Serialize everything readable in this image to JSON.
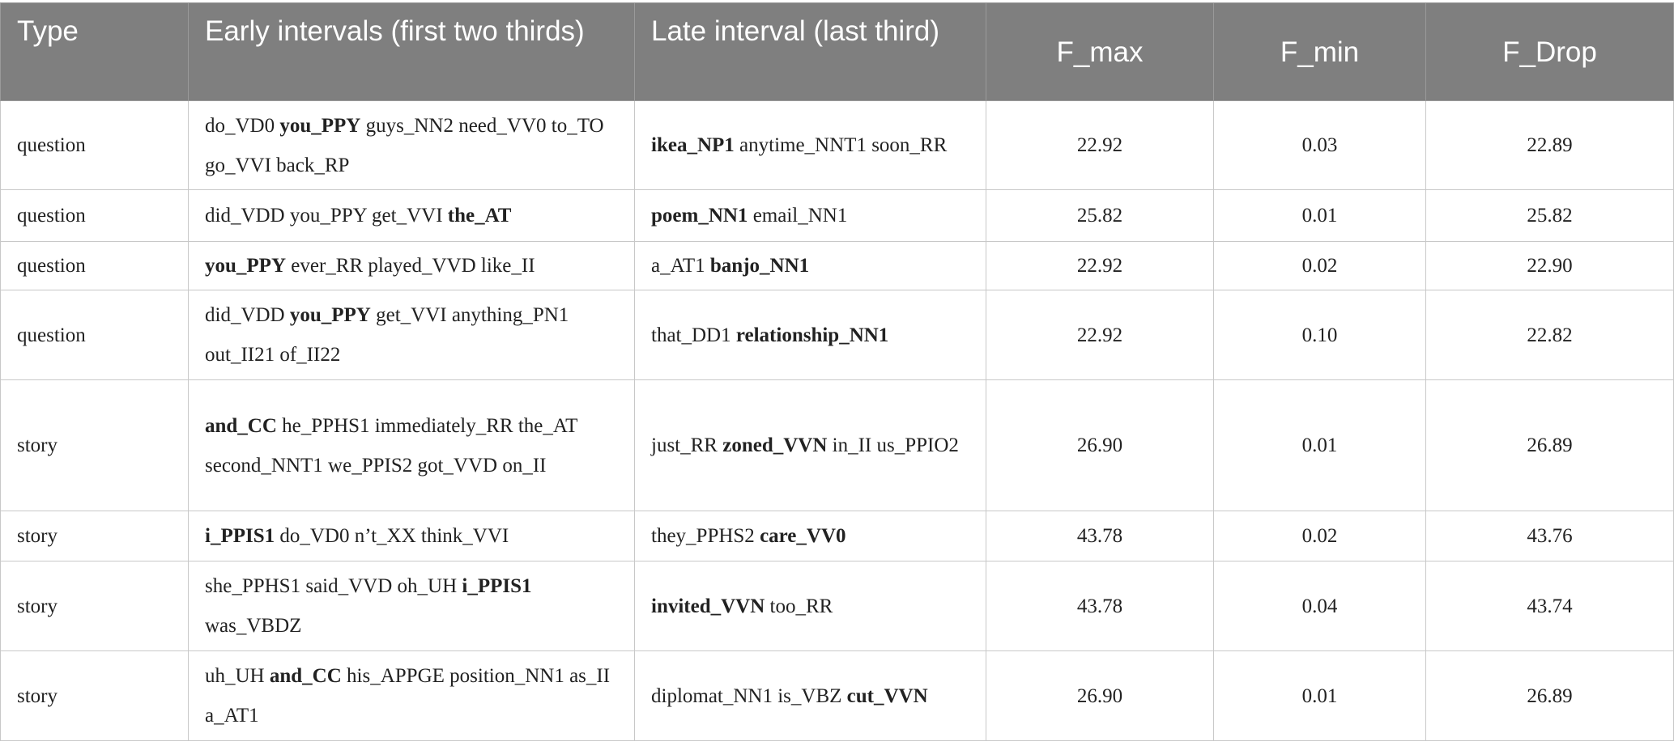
{
  "table": {
    "header": [
      "Type",
      "Early intervals (first two thirds)",
      "Late interval (last third)",
      "F_max",
      "F_min",
      "F_Drop"
    ],
    "rows": [
      [
        "question",
        [
          {
            "text": "do_VD0 "
          },
          {
            "text": "you_PPY",
            "bold": true
          },
          {
            "text": " guys_NN2 need_VV0 to_TO go_VVI back_RP"
          }
        ],
        [
          {
            "text": "ikea_NP1",
            "bold": true
          },
          {
            "text": " anytime_NNT1 soon_RR"
          }
        ],
        "22.92",
        "0.03",
        "22.89"
      ],
      [
        "question",
        [
          {
            "text": "did_VDD you_PPY get_VVI "
          },
          {
            "text": "the_AT",
            "bold": true
          }
        ],
        [
          {
            "text": "poem_NN1",
            "bold": true
          },
          {
            "text": " email_NN1"
          }
        ],
        "25.82",
        "0.01",
        "25.82"
      ],
      [
        "question",
        [
          {
            "text": "you_PPY",
            "bold": true
          },
          {
            "text": " ever_RR played_VVD like_II"
          }
        ],
        [
          {
            "text": "a_AT1 "
          },
          {
            "text": "banjo_NN1",
            "bold": true
          }
        ],
        "22.92",
        "0.02",
        "22.90"
      ],
      [
        "question",
        [
          {
            "text": "did_VDD "
          },
          {
            "text": "you_PPY",
            "bold": true
          },
          {
            "text": " get_VVI anything_PN1 out_II21 of_II22"
          }
        ],
        [
          {
            "text": "that_DD1 "
          },
          {
            "text": "relationship_NN1",
            "bold": true
          }
        ],
        "22.92",
        "0.10",
        "22.82"
      ],
      [
        "story",
        [
          {
            "text": "and_CC",
            "bold": true
          },
          {
            "text": " he_PPHS1 immediately_RR the_AT second_NNT1 we_PPIS2 got_VVD on_II"
          }
        ],
        [
          {
            "text": "just_RR "
          },
          {
            "text": "zoned_VVN",
            "bold": true
          },
          {
            "text": " in_II us_PPIO2"
          }
        ],
        "26.90",
        "0.01",
        "26.89"
      ],
      [
        "story",
        [
          {
            "text": "i_PPIS1",
            "bold": true
          },
          {
            "text": " do_VD0 n’t_XX think_VVI"
          }
        ],
        [
          {
            "text": "they_PPHS2 "
          },
          {
            "text": "care_VV0",
            "bold": true
          }
        ],
        "43.78",
        "0.02",
        "43.76"
      ],
      [
        "story",
        [
          {
            "text": "she_PPHS1 said_VVD oh_UH "
          },
          {
            "text": "i_PPIS1",
            "bold": true
          },
          {
            "text": " was_VBDZ"
          }
        ],
        [
          {
            "text": "invited_VVN",
            "bold": true
          },
          {
            "text": " too_RR"
          }
        ],
        "43.78",
        "0.04",
        "43.74"
      ],
      [
        "story",
        [
          {
            "text": "uh_UH "
          },
          {
            "text": "and_CC",
            "bold": true
          },
          {
            "text": " his_APPGE position_NN1 as_II a_AT1"
          }
        ],
        [
          {
            "text": "diplomat_NN1 is_VBZ "
          },
          {
            "text": "cut_VVN",
            "bold": true
          }
        ],
        "26.90",
        "0.01",
        "26.89"
      ]
    ]
  }
}
